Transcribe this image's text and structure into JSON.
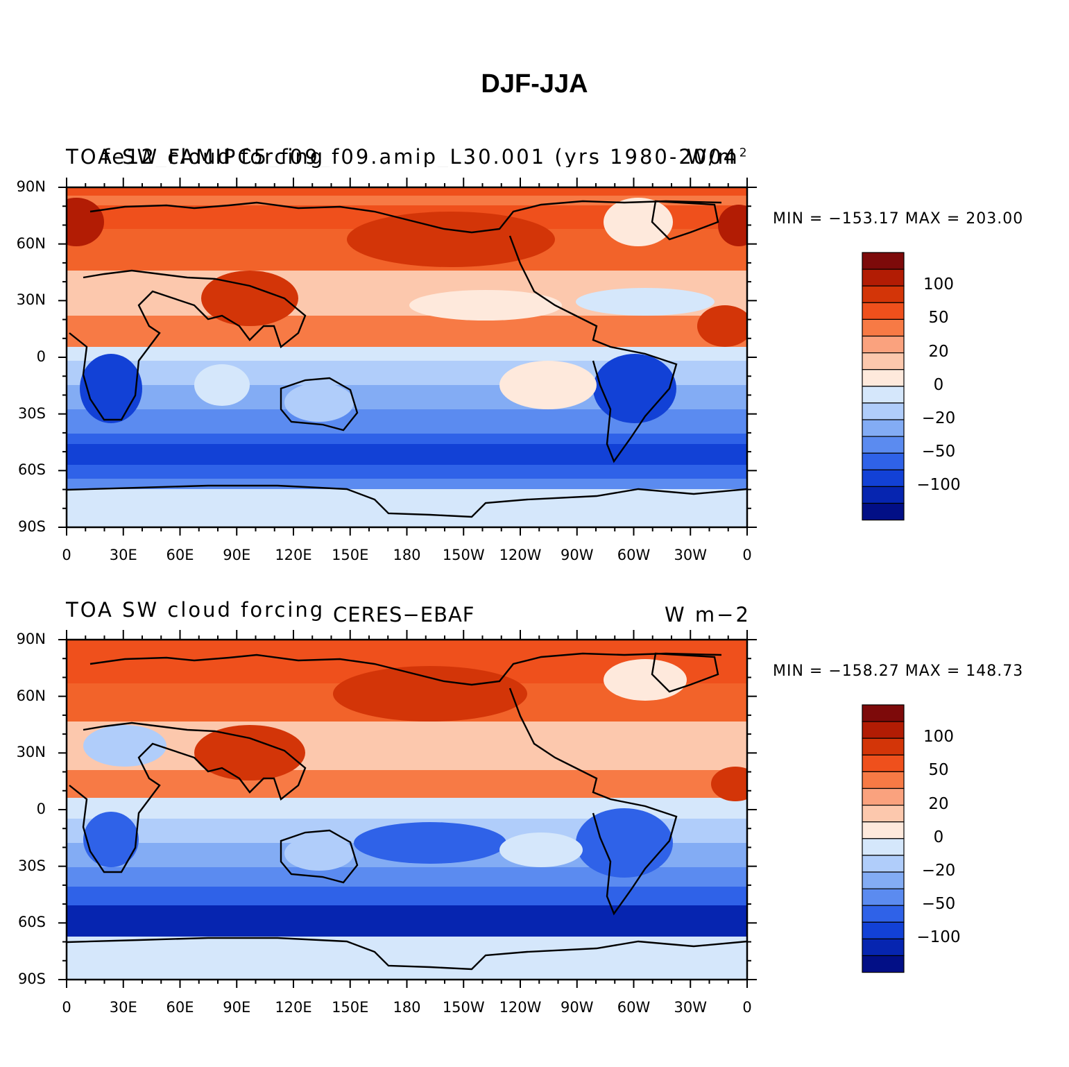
{
  "title": "DJF-JJA",
  "panels": [
    {
      "left_text": "TOA SW cloud forcing",
      "overlap_text": "fe12_FAMIPC5_f09_f09.amip_L30.001 (yrs 1980-2004)",
      "center_text": "",
      "units_text": "W/m",
      "units_sup": "2",
      "min_max": "MIN = −153.17 MAX = 203.00"
    },
    {
      "left_text": "TOA SW cloud forcing",
      "overlap_text": "",
      "center_text": "CERES−EBAF",
      "units_text": "W m−2",
      "units_sup": "",
      "min_max": "MIN = −158.27 MAX = 148.73"
    }
  ],
  "lat_ticks": [
    "90N",
    "60N",
    "30N",
    "0",
    "30S",
    "60S",
    "90S"
  ],
  "lon_ticks": [
    "0",
    "30E",
    "60E",
    "90E",
    "120E",
    "150E",
    "180",
    "150W",
    "120W",
    "90W",
    "60W",
    "30W",
    "0"
  ],
  "colorbar": {
    "labels": [
      "100",
      "50",
      "20",
      "0",
      "−20",
      "−50",
      "−100"
    ],
    "colors": [
      "#7d0a0a",
      "#b21c04",
      "#d33508",
      "#ef501c",
      "#f77a45",
      "#faa27e",
      "#fcc8ad",
      "#fee9dc",
      "#d5e7fb",
      "#b0cdfa",
      "#83acf4",
      "#5b8bf0",
      "#2f62e8",
      "#1241d6",
      "#0625b0",
      "#020f86"
    ]
  },
  "colors": {
    "strong_positive": "#c62a06",
    "positive": "#f2632a",
    "weak_positive": "#fcc8ad",
    "neutral": "#fee9dc",
    "weak_negative": "#d5e7fb",
    "negative": "#5b8bf0",
    "strong_negative": "#1241d6"
  }
}
